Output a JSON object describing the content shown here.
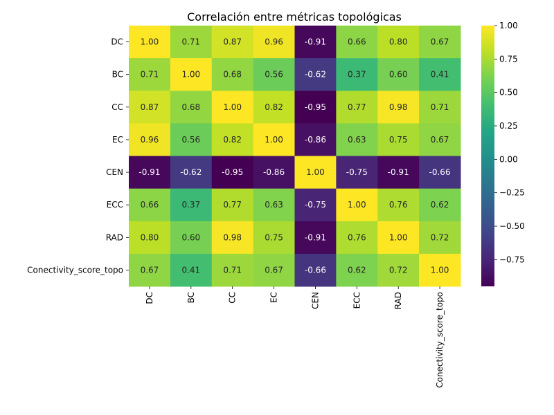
{
  "chart_data": {
    "type": "heatmap",
    "title": "Correlación entre métricas topológicas",
    "xlabel": "",
    "ylabel": "",
    "row_labels": [
      "DC",
      "BC",
      "CC",
      "EC",
      "CEN",
      "ECC",
      "RAD",
      "Conectivity_score_topo"
    ],
    "col_labels": [
      "DC",
      "BC",
      "CC",
      "EC",
      "CEN",
      "ECC",
      "RAD",
      "Conectivity_score_topo"
    ],
    "values": [
      [
        1.0,
        0.71,
        0.87,
        0.96,
        -0.91,
        0.66,
        0.8,
        0.67
      ],
      [
        0.71,
        1.0,
        0.68,
        0.56,
        -0.62,
        0.37,
        0.6,
        0.41
      ],
      [
        0.87,
        0.68,
        1.0,
        0.82,
        -0.95,
        0.77,
        0.98,
        0.71
      ],
      [
        0.96,
        0.56,
        0.82,
        1.0,
        -0.86,
        0.63,
        0.75,
        0.67
      ],
      [
        -0.91,
        -0.62,
        -0.95,
        -0.86,
        1.0,
        -0.75,
        -0.91,
        -0.66
      ],
      [
        0.66,
        0.37,
        0.77,
        0.63,
        -0.75,
        1.0,
        0.76,
        0.62
      ],
      [
        0.8,
        0.6,
        0.98,
        0.75,
        -0.91,
        0.76,
        1.0,
        0.72
      ],
      [
        0.67,
        0.41,
        0.71,
        0.67,
        -0.66,
        0.62,
        0.72,
        1.0
      ]
    ],
    "colormap": "viridis",
    "value_range": [
      -0.95,
      1.0
    ],
    "colorbar_ticks": [
      "1.00",
      "0.75",
      "0.50",
      "0.25",
      "0.00",
      "−0.25",
      "−0.50",
      "−0.75"
    ],
    "colorbar_tick_values": [
      1.0,
      0.75,
      0.5,
      0.25,
      0.0,
      -0.25,
      -0.5,
      -0.75
    ],
    "annotated": true,
    "grid": false
  }
}
